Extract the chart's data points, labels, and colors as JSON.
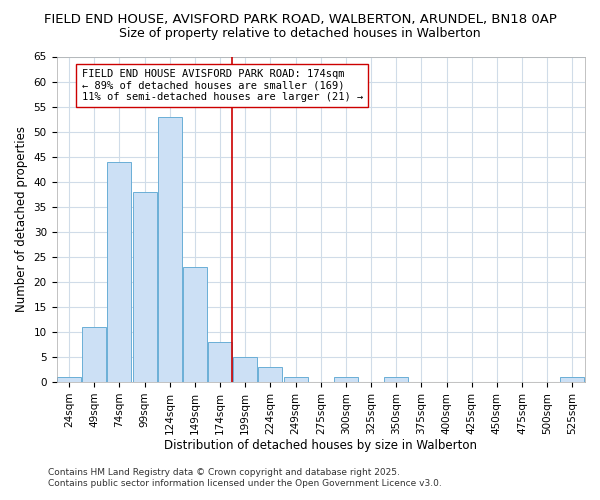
{
  "title_line1": "FIELD END HOUSE, AVISFORD PARK ROAD, WALBERTON, ARUNDEL, BN18 0AP",
  "title_line2": "Size of property relative to detached houses in Walberton",
  "xlabel": "Distribution of detached houses by size in Walberton",
  "ylabel": "Number of detached properties",
  "categories": [
    "24sqm",
    "49sqm",
    "74sqm",
    "99sqm",
    "124sqm",
    "149sqm",
    "174sqm",
    "199sqm",
    "224sqm",
    "249sqm",
    "275sqm",
    "300sqm",
    "325sqm",
    "350sqm",
    "375sqm",
    "400sqm",
    "425sqm",
    "450sqm",
    "475sqm",
    "500sqm",
    "525sqm"
  ],
  "values": [
    1,
    11,
    44,
    38,
    53,
    23,
    8,
    5,
    3,
    1,
    0,
    1,
    0,
    1,
    0,
    0,
    0,
    0,
    0,
    0,
    1
  ],
  "bar_color": "#cce0f5",
  "bar_edge_color": "#6aaed6",
  "marker_index": 6,
  "marker_label_line1": "FIELD END HOUSE AVISFORD PARK ROAD: 174sqm",
  "marker_label_line2": "← 89% of detached houses are smaller (169)",
  "marker_label_line3": "11% of semi-detached houses are larger (21) →",
  "marker_color": "#cc0000",
  "ylim": [
    0,
    65
  ],
  "yticks": [
    0,
    5,
    10,
    15,
    20,
    25,
    30,
    35,
    40,
    45,
    50,
    55,
    60,
    65
  ],
  "background_color": "#ffffff",
  "grid_color": "#d0dce8",
  "footer_line1": "Contains HM Land Registry data © Crown copyright and database right 2025.",
  "footer_line2": "Contains public sector information licensed under the Open Government Licence v3.0.",
  "title1_fontsize": 9.5,
  "title2_fontsize": 9.0,
  "axis_label_fontsize": 8.5,
  "tick_fontsize": 7.5,
  "annotation_fontsize": 7.5,
  "footer_fontsize": 6.5
}
